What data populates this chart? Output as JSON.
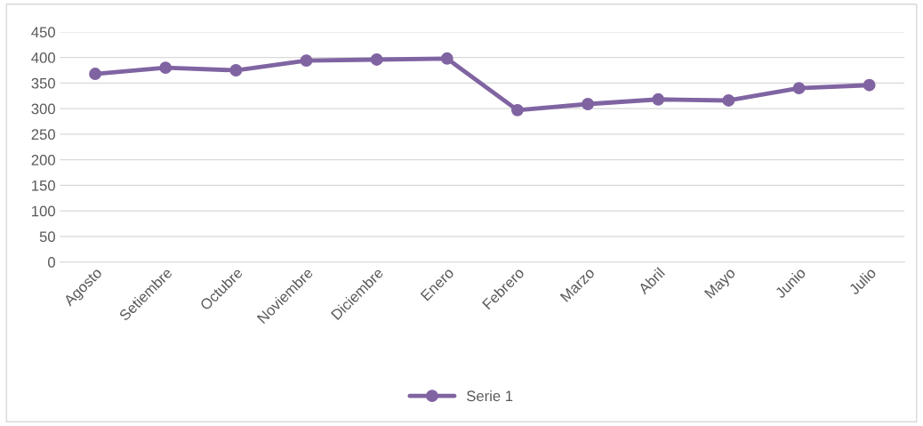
{
  "chart_data": {
    "type": "line",
    "categories": [
      "Agosto",
      "Setiembre",
      "Octubre",
      "Noviembre",
      "Diciembre",
      "Enero",
      "Febrero",
      "Marzo",
      "Abril",
      "Mayo",
      "Junio",
      "Julio"
    ],
    "series": [
      {
        "name": "Serie 1",
        "color": "#8064a2",
        "values": [
          368,
          380,
          375,
          394,
          396,
          398,
          297,
          309,
          318,
          316,
          340,
          346
        ]
      }
    ],
    "ylim": [
      0,
      450
    ],
    "yticks": [
      0,
      50,
      100,
      150,
      200,
      250,
      300,
      350,
      400,
      450
    ],
    "grid": "y",
    "legend": "bottom",
    "marker": "circle",
    "line_style": "solid"
  }
}
